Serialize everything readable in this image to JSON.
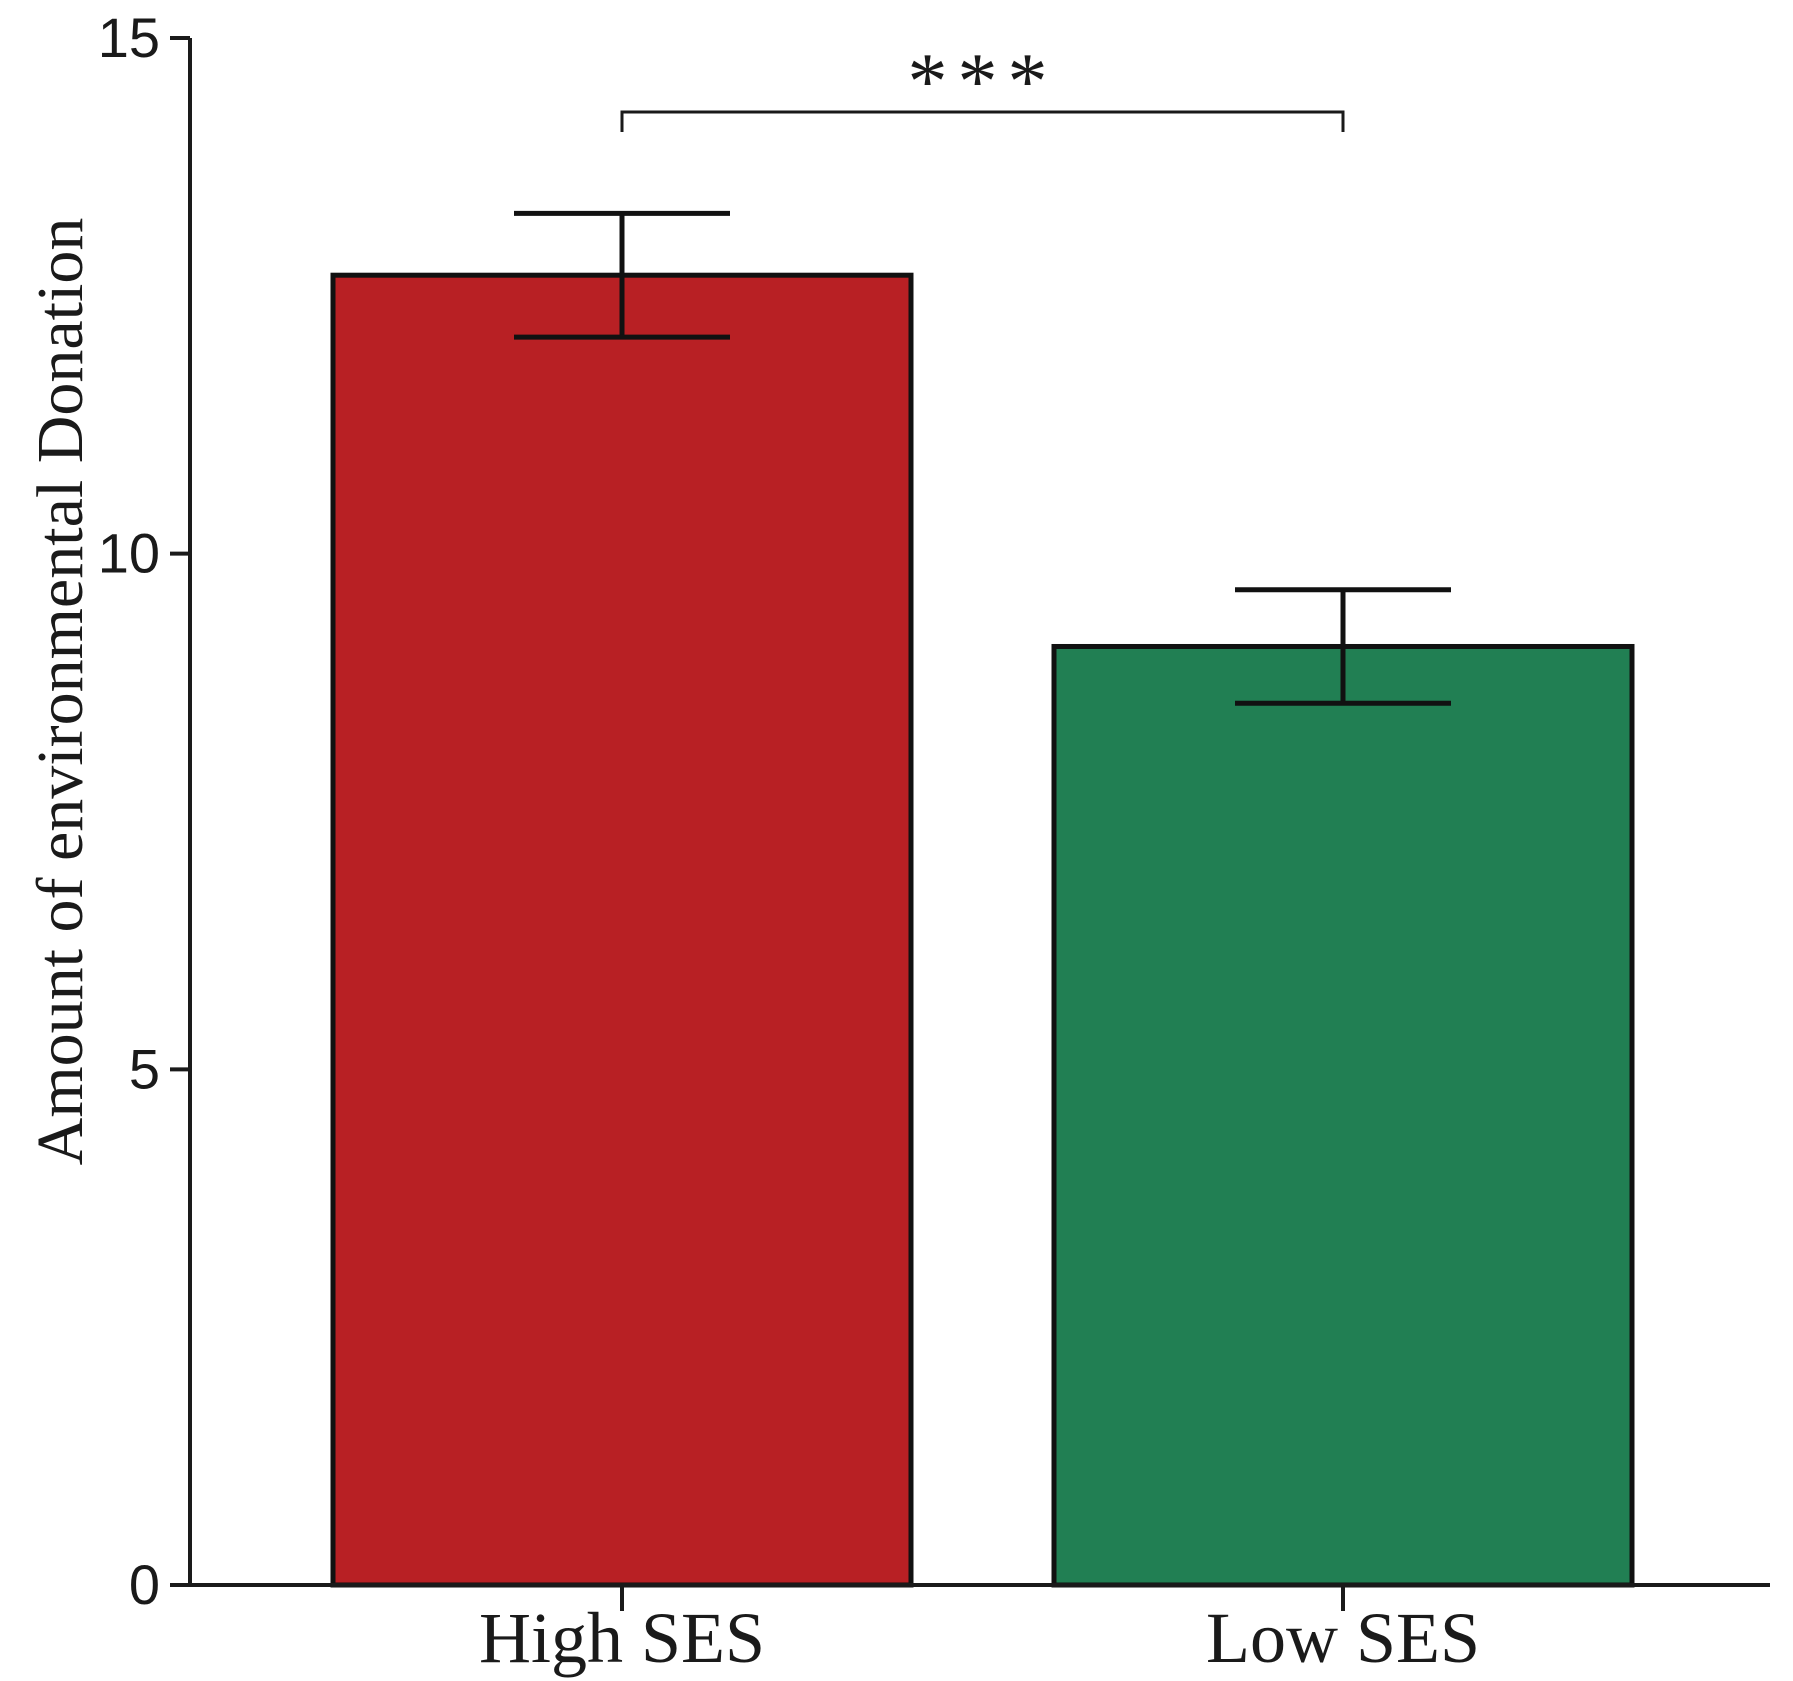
{
  "chart_data": {
    "type": "bar",
    "title": "",
    "xlabel": "",
    "ylabel": "Amount of environmental Donation",
    "categories": [
      "High SES",
      "Low SES"
    ],
    "values": [
      12.7,
      9.1
    ],
    "error_low": [
      12.1,
      8.55
    ],
    "error_high": [
      13.3,
      9.65
    ],
    "colors": [
      "#b82024",
      "#217f53"
    ],
    "ylim": [
      0,
      15
    ],
    "yticks": [
      0,
      5,
      10,
      15
    ],
    "ytick_labels": [
      "0",
      "5",
      "10",
      "15"
    ],
    "grid": false,
    "significance": {
      "label": "***",
      "from": "High SES",
      "to": "Low SES"
    }
  }
}
